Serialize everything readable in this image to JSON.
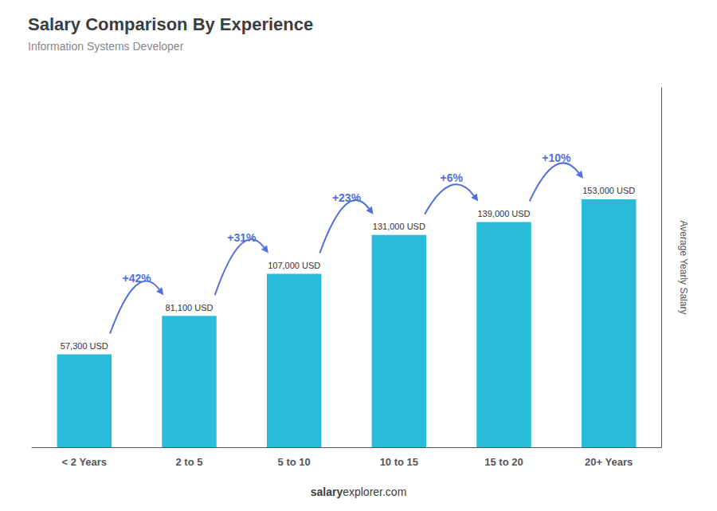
{
  "chart_data": {
    "type": "bar",
    "title": "Salary Comparison By Experience",
    "subtitle": "Information Systems Developer",
    "categories": [
      "< 2 Years",
      "2 to 5",
      "5 to 10",
      "10 to 15",
      "15 to 20",
      "20+ Years"
    ],
    "values": [
      57300,
      81100,
      107000,
      131000,
      139000,
      153000
    ],
    "value_labels": [
      "57,300 USD",
      "81,100 USD",
      "107,000 USD",
      "131,000 USD",
      "139,000 USD",
      "153,000 USD"
    ],
    "data_labels": true,
    "color": "#29bcd8",
    "ylabel": "Average Yearly Salary",
    "annotations": [
      "+42%",
      "+31%",
      "+23%",
      "+6%",
      "+10%"
    ],
    "footer": [
      "salary",
      "explorer.com"
    ],
    "ylim": [
      0,
      221850
    ],
    "tick_labels": "x",
    "grid": false
  }
}
